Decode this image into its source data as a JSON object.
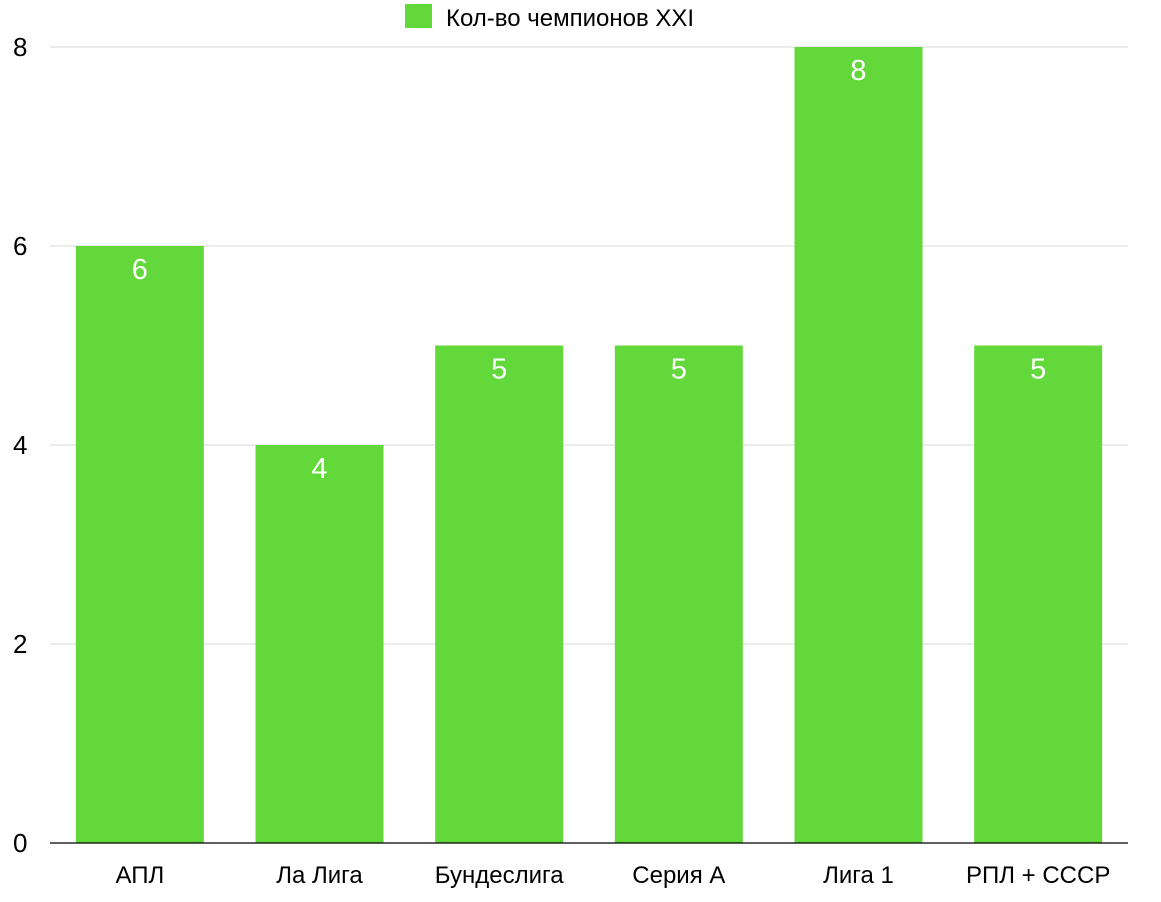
{
  "chart_data": {
    "type": "bar",
    "categories": [
      "АПЛ",
      "Ла Лига",
      "Бундеслига",
      "Серия A",
      "Лига 1",
      "РПЛ + СССР"
    ],
    "series": [
      {
        "name": "Кол-во чемпионов XXI",
        "values": [
          6,
          4,
          5,
          5,
          8,
          5
        ]
      }
    ],
    "ylim": [
      0,
      8
    ],
    "yticks": [
      0,
      2,
      4,
      6,
      8
    ],
    "grid": true,
    "legend_position": "top-center",
    "data_labels": true,
    "colors": {
      "bar": "#63d83a",
      "data_label": "#ffffff",
      "grid": "#d9d9d9"
    }
  }
}
